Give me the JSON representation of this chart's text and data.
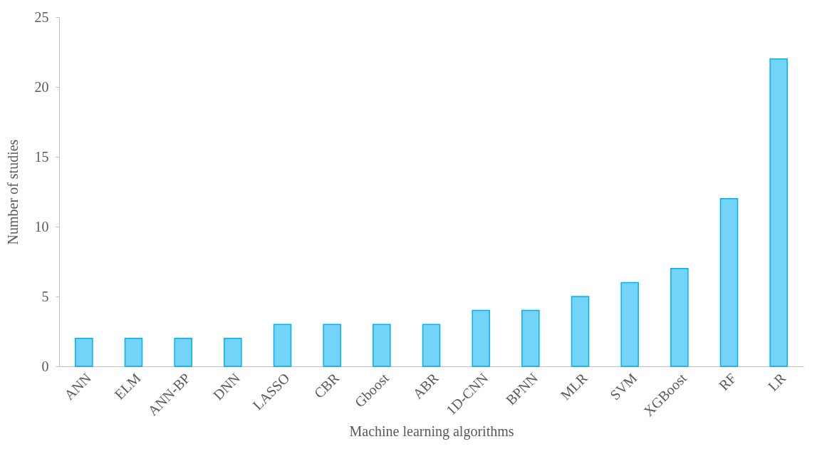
{
  "chart_data": {
    "type": "bar",
    "xlabel": "Machine learning algorithms",
    "ylabel": "Number of studies",
    "categories": [
      "ANN",
      "ELM",
      "ANN-BP",
      "DNN",
      "LASSO",
      "CBR",
      "Gboost",
      "ABR",
      "1D-CNN",
      "BPNN",
      "MLR",
      "SVM",
      "XGBoost",
      "RF",
      "LR"
    ],
    "values": [
      2,
      2,
      2,
      2,
      3,
      3,
      3,
      3,
      4,
      4,
      5,
      6,
      7,
      12,
      22
    ],
    "color": "#00b0f0",
    "ylim": [
      0,
      25
    ],
    "yticks": [
      0,
      5,
      10,
      15,
      20,
      25
    ],
    "grid": false,
    "legend": false
  }
}
